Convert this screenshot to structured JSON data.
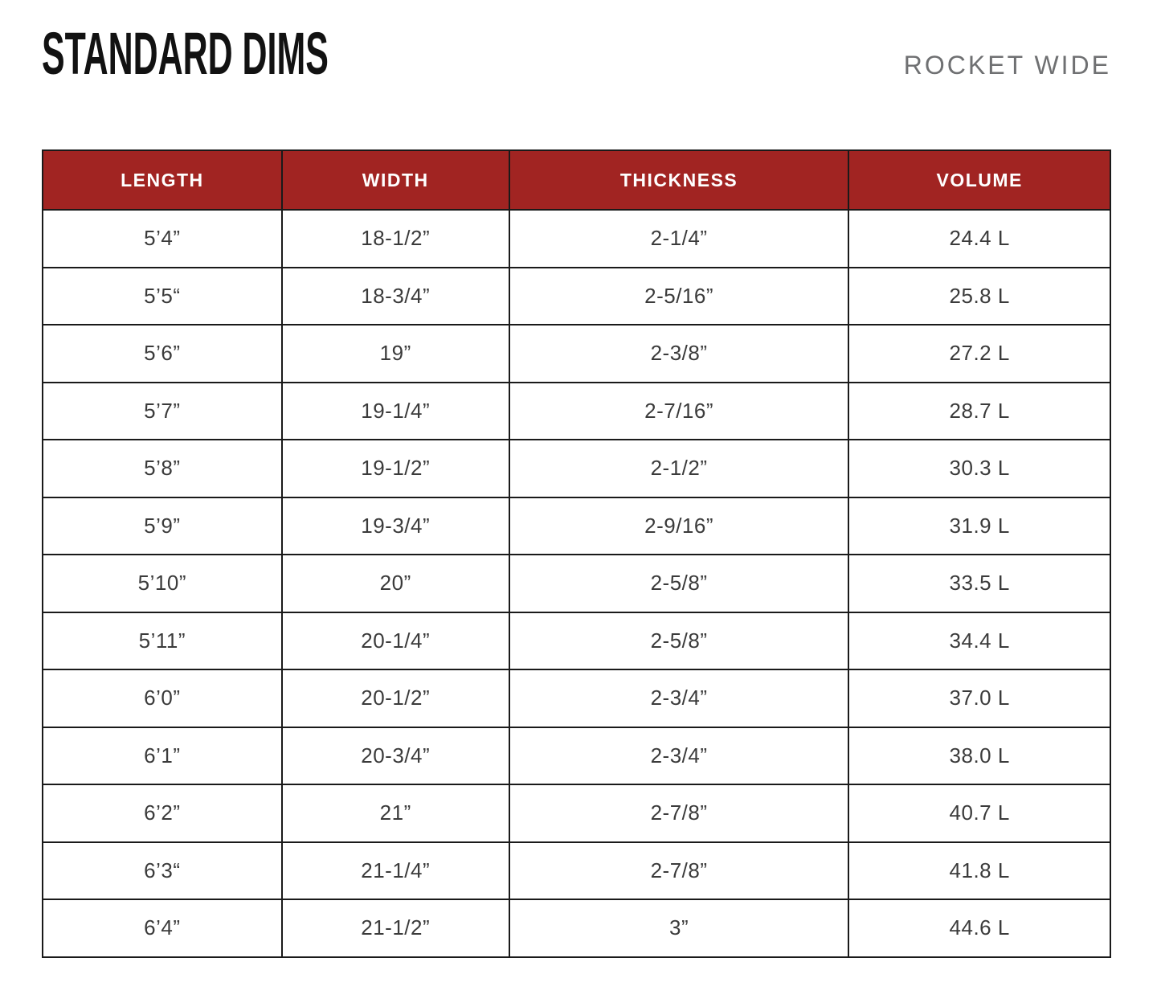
{
  "header": {
    "title": "STANDARD DIMS",
    "model": "ROCKET WIDE"
  },
  "table": {
    "columns": [
      "LENGTH",
      "WIDTH",
      "THICKNESS",
      "VOLUME"
    ],
    "rows": [
      [
        "5’4”",
        "18-1/2”",
        "2-1/4”",
        "24.4 L"
      ],
      [
        "5’5“",
        "18-3/4”",
        "2-5/16”",
        "25.8 L"
      ],
      [
        "5’6”",
        "19”",
        "2-3/8”",
        "27.2 L"
      ],
      [
        "5’7”",
        "19-1/4”",
        "2-7/16”",
        "28.7 L"
      ],
      [
        "5’8”",
        "19-1/2”",
        "2-1/2”",
        "30.3 L"
      ],
      [
        "5’9”",
        "19-3/4”",
        "2-9/16”",
        "31.9 L"
      ],
      [
        "5’10”",
        "20”",
        "2-5/8”",
        "33.5 L"
      ],
      [
        "5’11”",
        "20-1/4”",
        "2-5/8”",
        "34.4 L"
      ],
      [
        "6’0”",
        "20-1/2”",
        "2-3/4”",
        "37.0 L"
      ],
      [
        "6’1”",
        "20-3/4”",
        "2-3/4”",
        "38.0 L"
      ],
      [
        "6’2”",
        "21”",
        "2-7/8”",
        "40.7 L"
      ],
      [
        "6’3“",
        "21-1/4”",
        "2-7/8”",
        "41.8 L"
      ],
      [
        "6’4”",
        "21-1/2”",
        "3”",
        "44.6 L"
      ]
    ]
  },
  "colors": {
    "header_bg": "#a12422",
    "header_text": "#ffffff",
    "border": "#1a1a1a",
    "cell_text": "#3b3b3b",
    "model_text": "#6f7072",
    "title_text": "#121212"
  }
}
